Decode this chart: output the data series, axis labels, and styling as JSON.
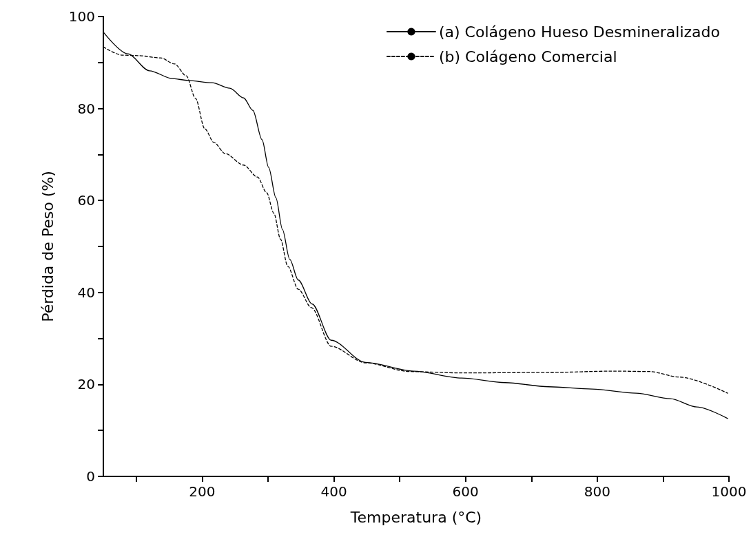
{
  "chart_data": {
    "type": "line",
    "xlabel": "Temperatura (°C)",
    "ylabel": "Pérdida de Peso (%)",
    "xlim": [
      50,
      1000
    ],
    "ylim": [
      0,
      100
    ],
    "xticks": [
      {
        "value": 100,
        "label": null
      },
      200,
      {
        "value": 300,
        "label": null
      },
      400,
      {
        "value": 500,
        "label": null
      },
      600,
      {
        "value": 700,
        "label": null
      },
      800,
      {
        "value": 900,
        "label": null
      },
      1000
    ],
    "yticks": [
      0,
      {
        "value": 10,
        "label": null
      },
      20,
      {
        "value": 30,
        "label": null
      },
      40,
      {
        "value": 50,
        "label": null
      },
      60,
      {
        "value": 70,
        "label": null
      },
      80,
      {
        "value": 90,
        "label": null
      },
      100
    ],
    "grid": false,
    "legend": "top right",
    "marker": "none",
    "series": [
      {
        "name": "(a) Colágeno Hueso Desmineralizado",
        "color": "#000000",
        "line_style": "solid",
        "x": [
          50,
          87,
          120,
          155,
          179,
          215,
          242,
          263,
          277,
          291,
          301,
          312,
          322,
          333,
          346,
          367,
          396,
          448,
          521,
          594,
          660,
          726,
          792,
          859,
          911,
          951,
          998
        ],
        "values": [
          96.6,
          91.9,
          88.2,
          86.5,
          86.1,
          85.6,
          84.4,
          82.3,
          79.6,
          73.2,
          67.2,
          60.6,
          53.7,
          47.2,
          42.7,
          37.5,
          29.6,
          24.8,
          22.9,
          21.4,
          20.4,
          19.5,
          19.0,
          18.1,
          16.9,
          15.1,
          12.6
        ]
      },
      {
        "name": "(b) Colágeno Comercial",
        "color": "#000000",
        "line_style": "dashed",
        "x": [
          50,
          79,
          103,
          137,
          158,
          176,
          190,
          204,
          218,
          235,
          263,
          284,
          298,
          309,
          319,
          330,
          346,
          366,
          396,
          448,
          515,
          594,
          726,
          826,
          879,
          925,
          998
        ],
        "values": [
          93.4,
          91.6,
          91.5,
          91.0,
          89.7,
          87.1,
          82.2,
          75.6,
          72.6,
          70.2,
          67.7,
          65.1,
          61.7,
          57.2,
          51.6,
          45.7,
          40.7,
          36.7,
          28.3,
          24.7,
          22.8,
          22.5,
          22.6,
          22.9,
          22.8,
          21.6,
          18.1
        ]
      }
    ]
  }
}
